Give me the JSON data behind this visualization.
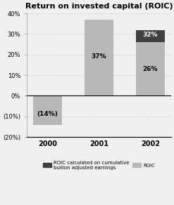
{
  "title": "Return on invested capital (ROIC)",
  "years": [
    "2000",
    "2001",
    "2002"
  ],
  "roic_values": [
    -14,
    37,
    26
  ],
  "roic_cumulative_values": [
    0,
    0,
    6
  ],
  "bar_labels": [
    "(14%)",
    "37%",
    "26%"
  ],
  "bar_cumulative_labels": [
    "",
    "",
    "32%"
  ],
  "color_roic": "#b8b8b8",
  "color_cumulative": "#404040",
  "ylim": [
    -20,
    40
  ],
  "yticks": [
    -20,
    -10,
    0,
    10,
    20,
    30,
    40
  ],
  "ytick_labels": [
    "(20%)",
    "(10%)",
    "0%",
    "10%",
    "20%",
    "30%",
    "40%"
  ],
  "legend_label_cumulative": "ROIC calculated on cumulative\nbullion adjusted earnings",
  "legend_label_roic": "ROIC",
  "bar_width": 0.55,
  "background_color": "#f0f0f0"
}
